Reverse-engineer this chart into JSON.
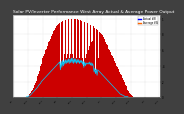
{
  "title": "Solar PV/Inverter Performance West Array Actual & Average Power Output",
  "title_fontsize": 3.2,
  "bg_color": "#404040",
  "plot_bg": "#ffffff",
  "bar_color": "#cc0000",
  "avg_line_color": "#00ccff",
  "legend_label1": "Actual kW",
  "legend_label2": "Average kW",
  "legend_color1": "#0000ff",
  "legend_color2": "#ff6600",
  "ylim": [
    0,
    1.05
  ],
  "grid_color": "#c0c0c0",
  "ytick_values": [
    0.0,
    0.2,
    0.4,
    0.6,
    0.8,
    1.0
  ],
  "ytick_labels": [
    "0",
    ".2",
    ".4",
    ".6",
    ".8",
    "1"
  ],
  "num_bars": 200,
  "bar_peaks": [
    0.0,
    0.0,
    0.0,
    0.0,
    0.0,
    0.0,
    0.0,
    0.0,
    0.0,
    0.0,
    0.0,
    0.0,
    0.0,
    0.0,
    0.0,
    0.0,
    0.0,
    0.0,
    0.01,
    0.01,
    0.02,
    0.03,
    0.04,
    0.05,
    0.06,
    0.08,
    0.1,
    0.12,
    0.14,
    0.16,
    0.18,
    0.21,
    0.24,
    0.27,
    0.3,
    0.33,
    0.36,
    0.4,
    0.43,
    0.46,
    0.5,
    0.52,
    0.55,
    0.57,
    0.6,
    0.62,
    0.65,
    0.67,
    0.7,
    0.72,
    0.74,
    0.76,
    0.78,
    0.8,
    0.82,
    0.84,
    0.86,
    0.88,
    0.9,
    0.91,
    0.92,
    0.93,
    0.94,
    0.95,
    0.4,
    0.96,
    0.5,
    0.97,
    0.45,
    0.97,
    0.55,
    0.98,
    0.5,
    0.98,
    0.55,
    0.99,
    0.5,
    0.99,
    0.55,
    1.0,
    0.55,
    1.0,
    0.5,
    1.0,
    0.55,
    0.99,
    0.5,
    0.99,
    0.55,
    0.98,
    0.5,
    0.98,
    0.55,
    0.97,
    0.5,
    0.97,
    0.4,
    0.96,
    0.5,
    0.95,
    0.55,
    0.94,
    0.6,
    0.93,
    0.65,
    0.92,
    0.7,
    0.91,
    0.72,
    0.9,
    0.4,
    0.88,
    0.35,
    0.87,
    0.3,
    0.85,
    0.5,
    0.83,
    0.45,
    0.82,
    0.8,
    0.79,
    0.78,
    0.76,
    0.74,
    0.72,
    0.7,
    0.68,
    0.66,
    0.64,
    0.62,
    0.6,
    0.58,
    0.56,
    0.54,
    0.52,
    0.5,
    0.48,
    0.46,
    0.44,
    0.42,
    0.4,
    0.38,
    0.36,
    0.34,
    0.32,
    0.3,
    0.28,
    0.26,
    0.24,
    0.22,
    0.2,
    0.18,
    0.16,
    0.14,
    0.12,
    0.1,
    0.08,
    0.06,
    0.05,
    0.04,
    0.03,
    0.02,
    0.01,
    0.01,
    0.0,
    0.0,
    0.0,
    0.0,
    0.0,
    0.0,
    0.0,
    0.0,
    0.0,
    0.0,
    0.0,
    0.0,
    0.0,
    0.0,
    0.0,
    0.0,
    0.0,
    0.0,
    0.0,
    0.0,
    0.0,
    0.0,
    0.0,
    0.0,
    0.0,
    0.0,
    0.0,
    0.0,
    0.0,
    0.0,
    0.0,
    0.0,
    0.0,
    0.0,
    0.0
  ],
  "avg_values": [
    0.0,
    0.0,
    0.0,
    0.0,
    0.0,
    0.0,
    0.0,
    0.0,
    0.0,
    0.0,
    0.0,
    0.0,
    0.0,
    0.0,
    0.0,
    0.0,
    0.0,
    0.0,
    0.01,
    0.01,
    0.01,
    0.02,
    0.02,
    0.03,
    0.04,
    0.05,
    0.06,
    0.07,
    0.08,
    0.09,
    0.1,
    0.11,
    0.12,
    0.13,
    0.15,
    0.16,
    0.17,
    0.18,
    0.2,
    0.21,
    0.22,
    0.23,
    0.24,
    0.25,
    0.26,
    0.27,
    0.28,
    0.29,
    0.3,
    0.31,
    0.32,
    0.33,
    0.34,
    0.35,
    0.36,
    0.37,
    0.38,
    0.39,
    0.4,
    0.41,
    0.42,
    0.43,
    0.44,
    0.45,
    0.35,
    0.46,
    0.38,
    0.47,
    0.4,
    0.47,
    0.42,
    0.48,
    0.43,
    0.48,
    0.44,
    0.49,
    0.43,
    0.49,
    0.44,
    0.5,
    0.44,
    0.5,
    0.43,
    0.49,
    0.44,
    0.49,
    0.43,
    0.48,
    0.44,
    0.48,
    0.43,
    0.47,
    0.44,
    0.47,
    0.42,
    0.46,
    0.38,
    0.45,
    0.4,
    0.44,
    0.42,
    0.43,
    0.44,
    0.42,
    0.45,
    0.41,
    0.44,
    0.4,
    0.43,
    0.39,
    0.32,
    0.37,
    0.3,
    0.36,
    0.28,
    0.35,
    0.34,
    0.33,
    0.32,
    0.31,
    0.3,
    0.29,
    0.28,
    0.27,
    0.26,
    0.25,
    0.24,
    0.23,
    0.22,
    0.21,
    0.2,
    0.19,
    0.18,
    0.17,
    0.16,
    0.15,
    0.14,
    0.13,
    0.12,
    0.11,
    0.1,
    0.09,
    0.08,
    0.07,
    0.06,
    0.05,
    0.04,
    0.04,
    0.03,
    0.03,
    0.02,
    0.02,
    0.01,
    0.01,
    0.01,
    0.01,
    0.01,
    0.0,
    0.0,
    0.0,
    0.0,
    0.0,
    0.0,
    0.0,
    0.0,
    0.0,
    0.0,
    0.0,
    0.0,
    0.0,
    0.0,
    0.0,
    0.0,
    0.0,
    0.0,
    0.0,
    0.0,
    0.0,
    0.0,
    0.0,
    0.0,
    0.0,
    0.0,
    0.0,
    0.0,
    0.0,
    0.0,
    0.0,
    0.0,
    0.0,
    0.0,
    0.0,
    0.0,
    0.0,
    0.0,
    0.0,
    0.0,
    0.0,
    0.0,
    0.0
  ],
  "xtick_positions": [
    0,
    20,
    40,
    60,
    80,
    100,
    120,
    140,
    160,
    180,
    199
  ],
  "xtick_labels": [
    "1/1",
    "1/22",
    "2/12",
    "3/5",
    "3/26",
    "4/16",
    "5/7",
    "5/28",
    "6/18",
    "7/9",
    "7/30"
  ]
}
